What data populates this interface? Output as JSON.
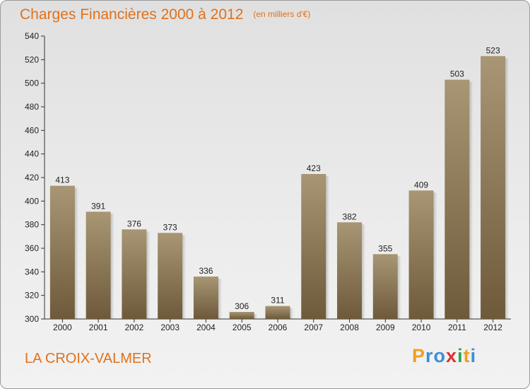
{
  "chart_data": {
    "type": "bar",
    "title": "Charges Financières 2000 à 2012",
    "subtitle": "(en milliers d'€)",
    "categories": [
      "2000",
      "2001",
      "2002",
      "2003",
      "2004",
      "2005",
      "2006",
      "2007",
      "2008",
      "2009",
      "2010",
      "2011",
      "2012"
    ],
    "values": [
      413,
      391,
      376,
      373,
      336,
      306,
      311,
      423,
      382,
      355,
      409,
      503,
      523
    ],
    "ylim": [
      300,
      540
    ],
    "yticks": [
      300,
      320,
      340,
      360,
      380,
      400,
      420,
      440,
      460,
      480,
      500,
      520,
      540
    ],
    "grid": false,
    "xlabel": "",
    "ylabel": ""
  },
  "footer": {
    "town": "LA CROIX-VALMER",
    "logo_letters": [
      "P",
      "r",
      "o",
      "x",
      "i",
      "t",
      "i"
    ],
    "logo_colors": [
      "#f0a020",
      "#3a8fd8",
      "#3a8fd8",
      "#e03030",
      "#2aa84a",
      "#f0a020",
      "#3a8fd8"
    ]
  },
  "colors": {
    "title": "#e0711c",
    "bar_top": "#a89674",
    "bar_bottom": "#6e5a3a"
  }
}
